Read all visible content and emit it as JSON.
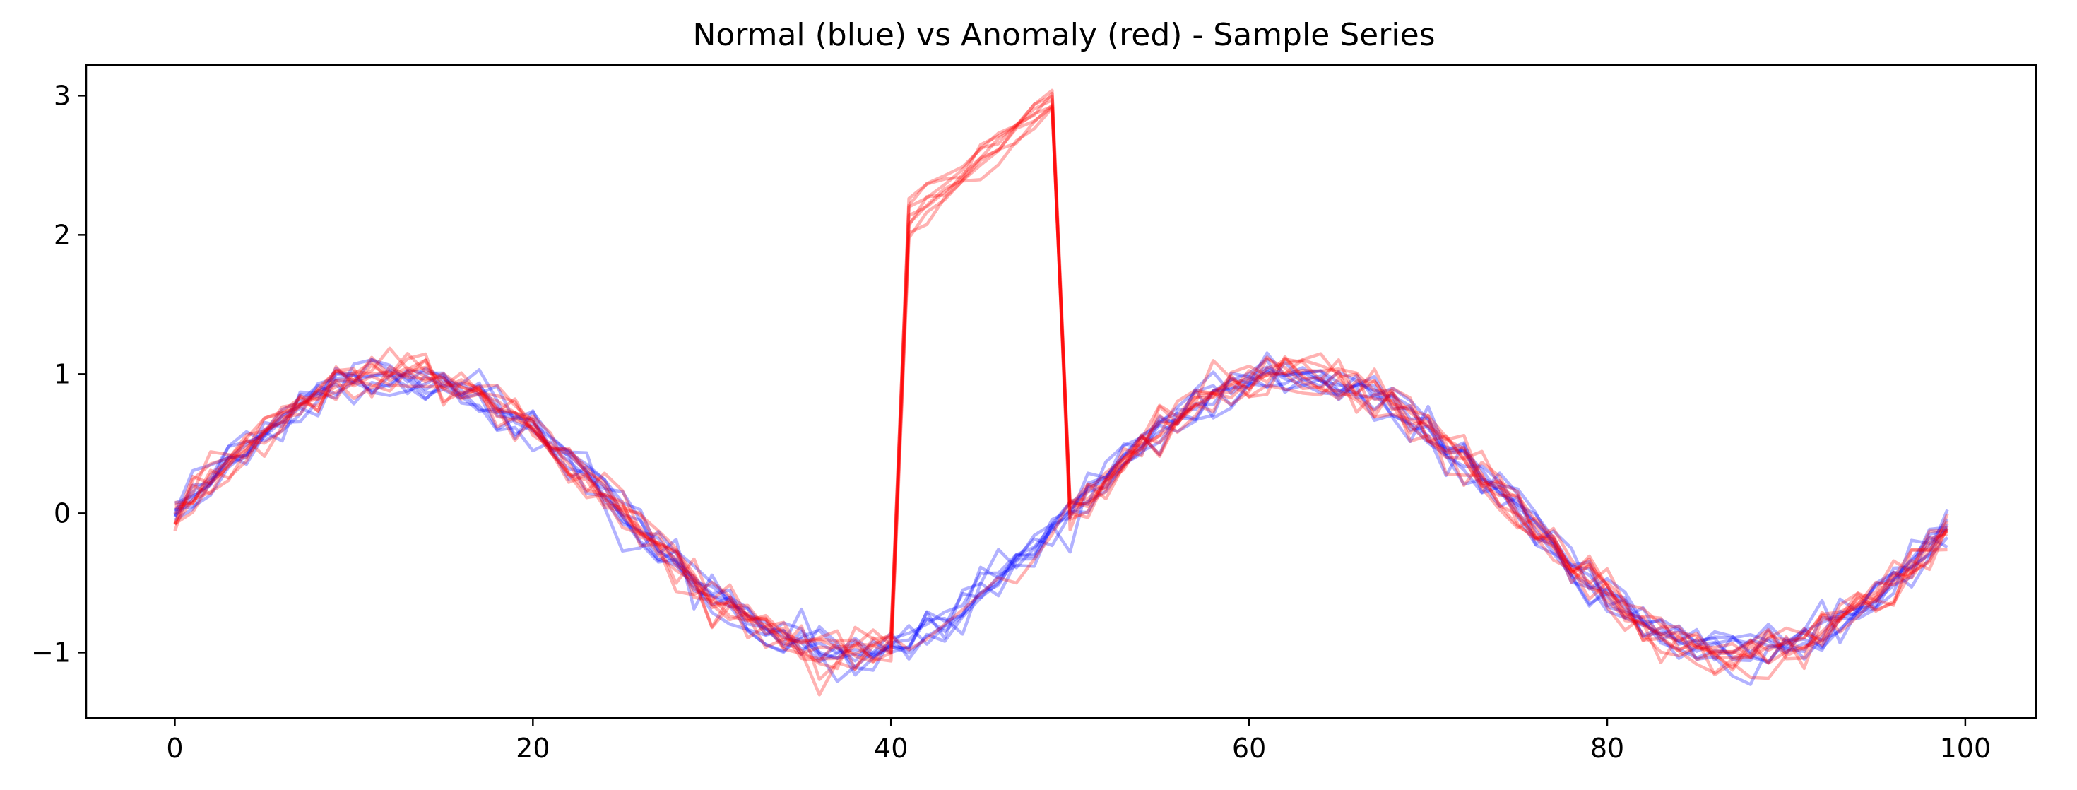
{
  "chart_data": {
    "type": "line",
    "title": "Normal (blue) vs Anomaly (red) - Sample Series",
    "xlabel": "",
    "ylabel": "",
    "xlim": [
      -4.95,
      103.95
    ],
    "ylim": [
      -1.47,
      3.22
    ],
    "x_ticks": [
      0,
      20,
      40,
      60,
      80,
      100
    ],
    "x_tick_labels": [
      "0",
      "20",
      "40",
      "60",
      "80",
      "100"
    ],
    "y_ticks": [
      -1,
      0,
      1,
      2,
      3
    ],
    "y_tick_labels": [
      "−1",
      "0",
      "1",
      "2",
      "3"
    ],
    "grid": false,
    "legend": "none",
    "n_points": 100,
    "series": [
      {
        "color": "#0000ff",
        "opacity": 0.3,
        "anomaly": null
      },
      {
        "color": "#0000ff",
        "opacity": 0.3,
        "anomaly": null
      },
      {
        "color": "#0000ff",
        "opacity": 0.3,
        "anomaly": null
      },
      {
        "color": "#0000ff",
        "opacity": 0.3,
        "anomaly": null
      },
      {
        "color": "#0000ff",
        "opacity": 0.3,
        "anomaly": null
      },
      {
        "color": "#0000ff",
        "opacity": 0.3,
        "anomaly": null
      },
      {
        "color": "#0000ff",
        "opacity": 0.3,
        "anomaly": null
      },
      {
        "color": "#0000ff",
        "opacity": 0.3,
        "anomaly": null
      },
      {
        "color": "#ff0000",
        "opacity": 0.3,
        "anomaly": null
      },
      {
        "color": "#ff0000",
        "opacity": 0.3,
        "anomaly": {
          "start": 41,
          "end": 49,
          "from": 2.1,
          "to": 3.0
        }
      },
      {
        "color": "#ff0000",
        "opacity": 0.3,
        "anomaly": {
          "start": 41,
          "end": 49,
          "from": 2.05,
          "to": 2.95
        }
      },
      {
        "color": "#ff0000",
        "opacity": 0.3,
        "anomaly": {
          "start": 41,
          "end": 49,
          "from": 2.15,
          "to": 2.98
        }
      },
      {
        "color": "#ff0000",
        "opacity": 0.3,
        "anomaly": {
          "start": 41,
          "end": 49,
          "from": 2.0,
          "to": 2.9
        }
      },
      {
        "color": "#ff0000",
        "opacity": 0.3,
        "anomaly": {
          "start": 41,
          "end": 49,
          "from": 2.2,
          "to": 3.0
        }
      },
      {
        "color": "#ff0000",
        "opacity": 0.3,
        "anomaly": {
          "start": 41,
          "end": 49,
          "from": 2.1,
          "to": 2.95
        }
      },
      {
        "color": "#ff0000",
        "opacity": 0.3,
        "anomaly": {
          "start": 41,
          "end": 49,
          "from": 2.05,
          "to": 2.97
        }
      },
      {
        "color": "#ff0000",
        "opacity": 0.3,
        "anomaly": {
          "start": 41,
          "end": 49,
          "from": 2.18,
          "to": 3.0
        }
      }
    ]
  }
}
